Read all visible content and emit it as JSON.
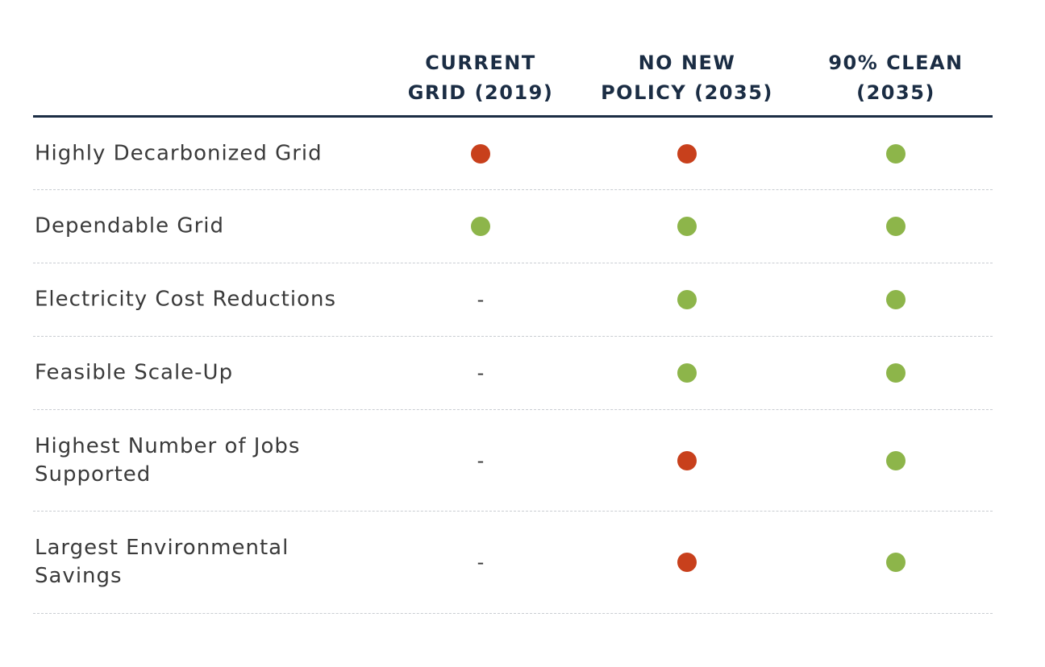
{
  "chart_data": {
    "type": "table",
    "columns": [
      {
        "lines": [
          "CURRENT",
          "GRID (2019)"
        ]
      },
      {
        "lines": [
          "NO NEW",
          "POLICY (2035)"
        ]
      },
      {
        "lines": [
          "90% CLEAN",
          "(2035)"
        ]
      }
    ],
    "rows": [
      {
        "label_lines": [
          "Highly Decarbonized Grid"
        ],
        "values": [
          "red",
          "red",
          "green"
        ]
      },
      {
        "label_lines": [
          "Dependable Grid"
        ],
        "values": [
          "green",
          "green",
          "green"
        ]
      },
      {
        "label_lines": [
          "Electricity Cost Reductions"
        ],
        "values": [
          "-",
          "green",
          "green"
        ]
      },
      {
        "label_lines": [
          "Feasible Scale-Up"
        ],
        "values": [
          "-",
          "green",
          "green"
        ]
      },
      {
        "label_lines": [
          "Highest Number of Jobs",
          "Supported"
        ],
        "values": [
          "-",
          "red",
          "green"
        ]
      },
      {
        "label_lines": [
          "Largest Environmental",
          "Savings"
        ],
        "values": [
          "-",
          "red",
          "green"
        ]
      }
    ],
    "colors": {
      "red": "#c8401c",
      "green": "#8db54a",
      "header_text": "#1b2d44",
      "header_rule": "#1b2d44"
    },
    "dash_symbol": "-"
  }
}
